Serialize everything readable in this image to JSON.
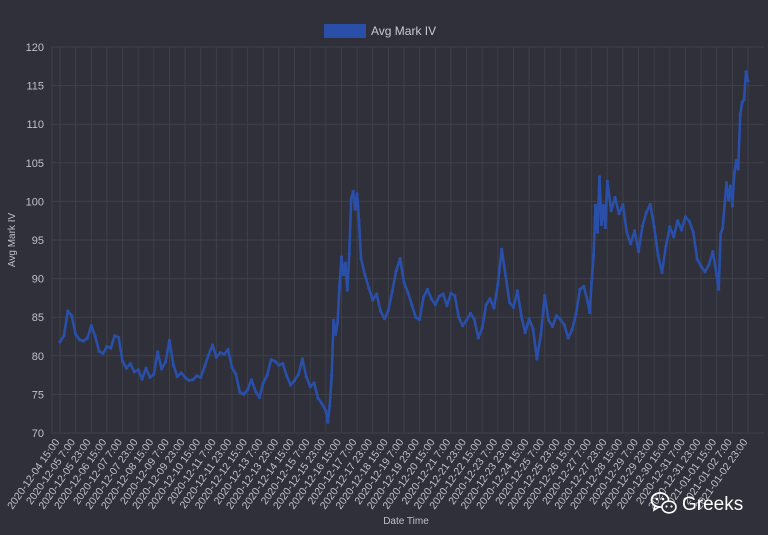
{
  "chart_data": {
    "type": "line",
    "title": "",
    "xlabel": "Date Time",
    "ylabel": "Avg Mark IV",
    "ylim": [
      70,
      120
    ],
    "yticks": [
      70,
      75,
      80,
      85,
      90,
      95,
      100,
      105,
      110,
      115,
      120
    ],
    "grid": true,
    "legend_position": "top-center",
    "x_tick_labels": [
      "2020-12-04 15:00",
      "2020-12-05 7:00",
      "2020-12-05 23:00",
      "2020-12-06 15:00",
      "2020-12-07 7:00",
      "2020-12-07 23:00",
      "2020-12-08 15:00",
      "2020-12-09 7:00",
      "2020-12-09 23:00",
      "2020-12-10 15:00",
      "2020-12-11 7:00",
      "2020-12-11 23:00",
      "2020-12-12 15:00",
      "2020-12-13 7:00",
      "2020-12-13 23:00",
      "2020-12-14 15:00",
      "2020-12-15 7:00",
      "2020-12-15 23:00",
      "2020-12-16 15:00",
      "2020-12-17 7:00",
      "2020-12-17 23:00",
      "2020-12-18 15:00",
      "2020-12-19 7:00",
      "2020-12-19 23:00",
      "2020-12-20 15:00",
      "2020-12-21 7:00",
      "2020-12-21 23:00",
      "2020-12-22 15:00",
      "2020-12-23 7:00",
      "2020-12-23 23:00",
      "2020-12-24 15:00",
      "2020-12-25 7:00",
      "2020-12-25 23:00",
      "2020-12-26 15:00",
      "2020-12-27 7:00",
      "2020-12-27 23:00",
      "2020-12-28 15:00",
      "2020-12-29 7:00",
      "2020-12-29 23:00",
      "2020-12-30 15:00",
      "2020-12-31 7:00",
      "2020-12-31 23:00",
      "2021-01-01 15:00",
      "2021-01-02 7:00",
      "2021-01-02 23:00"
    ],
    "series": [
      {
        "name": "Avg Mark IV",
        "color": "#2a4fa8",
        "points": [
          [
            "2020-12-04 15:00",
            81.8
          ],
          [
            "2020-12-04 19:00",
            82.6
          ],
          [
            "2020-12-04 23:00",
            85.8
          ],
          [
            "2020-12-05 3:00",
            85.2
          ],
          [
            "2020-12-05 7:00",
            82.8
          ],
          [
            "2020-12-05 11:00",
            82.1
          ],
          [
            "2020-12-05 15:00",
            81.9
          ],
          [
            "2020-12-05 19:00",
            82.3
          ],
          [
            "2020-12-05 23:00",
            83.9
          ],
          [
            "2020-12-06 3:00",
            82.5
          ],
          [
            "2020-12-06 7:00",
            80.6
          ],
          [
            "2020-12-06 11:00",
            80.3
          ],
          [
            "2020-12-06 15:00",
            81.2
          ],
          [
            "2020-12-06 19:00",
            81.0
          ],
          [
            "2020-12-06 23:00",
            82.6
          ],
          [
            "2020-12-07 3:00",
            82.4
          ],
          [
            "2020-12-07 7:00",
            79.3
          ],
          [
            "2020-12-07 11:00",
            78.4
          ],
          [
            "2020-12-07 15:00",
            79.0
          ],
          [
            "2020-12-07 19:00",
            77.9
          ],
          [
            "2020-12-07 23:00",
            78.2
          ],
          [
            "2020-12-08 3:00",
            77.0
          ],
          [
            "2020-12-08 7:00",
            78.4
          ],
          [
            "2020-12-08 11:00",
            77.2
          ],
          [
            "2020-12-08 15:00",
            77.6
          ],
          [
            "2020-12-08 19:00",
            80.5
          ],
          [
            "2020-12-08 23:00",
            78.3
          ],
          [
            "2020-12-09 3:00",
            79.2
          ],
          [
            "2020-12-09 7:00",
            82.0
          ],
          [
            "2020-12-09 11:00",
            78.8
          ],
          [
            "2020-12-09 15:00",
            77.3
          ],
          [
            "2020-12-09 19:00",
            77.8
          ],
          [
            "2020-12-09 23:00",
            77.2
          ],
          [
            "2020-12-10 3:00",
            76.8
          ],
          [
            "2020-12-10 7:00",
            76.9
          ],
          [
            "2020-12-10 11:00",
            77.4
          ],
          [
            "2020-12-10 15:00",
            77.2
          ],
          [
            "2020-12-10 19:00",
            78.6
          ],
          [
            "2020-12-10 23:00",
            80.1
          ],
          [
            "2020-12-11 3:00",
            81.4
          ],
          [
            "2020-12-11 7:00",
            79.8
          ],
          [
            "2020-12-11 11:00",
            80.4
          ],
          [
            "2020-12-11 15:00",
            80.2
          ],
          [
            "2020-12-11 19:00",
            80.8
          ],
          [
            "2020-12-11 23:00",
            78.5
          ],
          [
            "2020-12-12 3:00",
            77.6
          ],
          [
            "2020-12-12 7:00",
            75.3
          ],
          [
            "2020-12-12 11:00",
            75.0
          ],
          [
            "2020-12-12 15:00",
            75.6
          ],
          [
            "2020-12-12 19:00",
            76.9
          ],
          [
            "2020-12-12 23:00",
            75.4
          ],
          [
            "2020-12-13 3:00",
            74.6
          ],
          [
            "2020-12-13 7:00",
            76.5
          ],
          [
            "2020-12-13 11:00",
            77.5
          ],
          [
            "2020-12-13 15:00",
            79.5
          ],
          [
            "2020-12-13 19:00",
            79.3
          ],
          [
            "2020-12-13 23:00",
            78.8
          ],
          [
            "2020-12-14 3:00",
            79.0
          ],
          [
            "2020-12-14 7:00",
            77.4
          ],
          [
            "2020-12-14 11:00",
            76.2
          ],
          [
            "2020-12-14 15:00",
            76.8
          ],
          [
            "2020-12-14 19:00",
            77.6
          ],
          [
            "2020-12-14 23:00",
            79.6
          ],
          [
            "2020-12-15 3:00",
            77.3
          ],
          [
            "2020-12-15 7:00",
            76.0
          ],
          [
            "2020-12-15 11:00",
            76.5
          ],
          [
            "2020-12-15 15:00",
            74.5
          ],
          [
            "2020-12-15 19:00",
            73.8
          ],
          [
            "2020-12-15 23:00",
            72.9
          ],
          [
            "2020-12-16 1:00",
            71.4
          ],
          [
            "2020-12-16 3:00",
            73.5
          ],
          [
            "2020-12-16 5:00",
            77.5
          ],
          [
            "2020-12-16 7:00",
            84.6
          ],
          [
            "2020-12-16 9:00",
            82.8
          ],
          [
            "2020-12-16 11:00",
            84.2
          ],
          [
            "2020-12-16 13:00",
            89.0
          ],
          [
            "2020-12-16 15:00",
            92.8
          ],
          [
            "2020-12-16 17:00",
            90.5
          ],
          [
            "2020-12-16 19:00",
            92.0
          ],
          [
            "2020-12-16 21:00",
            88.5
          ],
          [
            "2020-12-16 23:00",
            93.2
          ],
          [
            "2020-12-17 1:00",
            100.4
          ],
          [
            "2020-12-17 3:00",
            101.3
          ],
          [
            "2020-12-17 5:00",
            99.0
          ],
          [
            "2020-12-17 7:00",
            101.0
          ],
          [
            "2020-12-17 9:00",
            97.5
          ],
          [
            "2020-12-17 11:00",
            92.6
          ],
          [
            "2020-12-17 15:00",
            90.5
          ],
          [
            "2020-12-17 19:00",
            88.8
          ],
          [
            "2020-12-17 23:00",
            87.2
          ],
          [
            "2020-12-18 3:00",
            88.0
          ],
          [
            "2020-12-18 7:00",
            85.8
          ],
          [
            "2020-12-18 11:00",
            84.8
          ],
          [
            "2020-12-18 15:00",
            85.9
          ],
          [
            "2020-12-18 19:00",
            88.4
          ],
          [
            "2020-12-18 23:00",
            91.0
          ],
          [
            "2020-12-19 3:00",
            92.6
          ],
          [
            "2020-12-19 7:00",
            89.5
          ],
          [
            "2020-12-19 11:00",
            88.2
          ],
          [
            "2020-12-19 15:00",
            86.6
          ],
          [
            "2020-12-19 19:00",
            85.0
          ],
          [
            "2020-12-19 23:00",
            84.7
          ],
          [
            "2020-12-20 3:00",
            87.6
          ],
          [
            "2020-12-20 7:00",
            88.6
          ],
          [
            "2020-12-20 11:00",
            87.4
          ],
          [
            "2020-12-20 15:00",
            86.6
          ],
          [
            "2020-12-20 19:00",
            87.7
          ],
          [
            "2020-12-20 23:00",
            88.0
          ],
          [
            "2020-12-21 3:00",
            86.5
          ],
          [
            "2020-12-21 7:00",
            88.1
          ],
          [
            "2020-12-21 11:00",
            87.8
          ],
          [
            "2020-12-21 15:00",
            85.0
          ],
          [
            "2020-12-21 19:00",
            83.9
          ],
          [
            "2020-12-21 23:00",
            84.6
          ],
          [
            "2020-12-22 3:00",
            85.5
          ],
          [
            "2020-12-22 7:00",
            84.7
          ],
          [
            "2020-12-22 11:00",
            82.3
          ],
          [
            "2020-12-22 15:00",
            83.6
          ],
          [
            "2020-12-22 19:00",
            86.6
          ],
          [
            "2020-12-22 23:00",
            87.4
          ],
          [
            "2020-12-23 3:00",
            86.2
          ],
          [
            "2020-12-23 7:00",
            89.2
          ],
          [
            "2020-12-23 11:00",
            93.8
          ],
          [
            "2020-12-23 15:00",
            90.4
          ],
          [
            "2020-12-23 19:00",
            86.9
          ],
          [
            "2020-12-23 23:00",
            86.3
          ],
          [
            "2020-12-24 3:00",
            88.4
          ],
          [
            "2020-12-24 7:00",
            85.2
          ],
          [
            "2020-12-24 11:00",
            83.0
          ],
          [
            "2020-12-24 15:00",
            84.8
          ],
          [
            "2020-12-24 19:00",
            83.5
          ],
          [
            "2020-12-24 23:00",
            79.6
          ],
          [
            "2020-12-25 3:00",
            82.7
          ],
          [
            "2020-12-25 7:00",
            87.8
          ],
          [
            "2020-12-25 11:00",
            84.6
          ],
          [
            "2020-12-25 15:00",
            83.8
          ],
          [
            "2020-12-25 19:00",
            85.2
          ],
          [
            "2020-12-25 23:00",
            84.7
          ],
          [
            "2020-12-26 3:00",
            84.0
          ],
          [
            "2020-12-26 7:00",
            82.3
          ],
          [
            "2020-12-26 11:00",
            83.4
          ],
          [
            "2020-12-26 15:00",
            85.4
          ],
          [
            "2020-12-26 19:00",
            88.6
          ],
          [
            "2020-12-26 23:00",
            89.0
          ],
          [
            "2020-12-27 3:00",
            87.0
          ],
          [
            "2020-12-27 5:00",
            85.6
          ],
          [
            "2020-12-27 7:00",
            89.5
          ],
          [
            "2020-12-27 9:00",
            93.0
          ],
          [
            "2020-12-27 11:00",
            99.5
          ],
          [
            "2020-12-27 13:00",
            96.0
          ],
          [
            "2020-12-27 15:00",
            103.2
          ],
          [
            "2020-12-27 17:00",
            97.0
          ],
          [
            "2020-12-27 19:00",
            99.5
          ],
          [
            "2020-12-27 21:00",
            96.6
          ],
          [
            "2020-12-27 23:00",
            102.6
          ],
          [
            "2020-12-28 3:00",
            98.8
          ],
          [
            "2020-12-28 7:00",
            100.5
          ],
          [
            "2020-12-28 11:00",
            98.4
          ],
          [
            "2020-12-28 15:00",
            99.6
          ],
          [
            "2020-12-28 19:00",
            96.0
          ],
          [
            "2020-12-28 23:00",
            94.5
          ],
          [
            "2020-12-29 3:00",
            96.2
          ],
          [
            "2020-12-29 7:00",
            93.5
          ],
          [
            "2020-12-29 11:00",
            96.8
          ],
          [
            "2020-12-29 15:00",
            98.6
          ],
          [
            "2020-12-29 19:00",
            99.6
          ],
          [
            "2020-12-29 23:00",
            96.7
          ],
          [
            "2020-12-30 3:00",
            93.0
          ],
          [
            "2020-12-30 7:00",
            90.8
          ],
          [
            "2020-12-30 11:00",
            94.2
          ],
          [
            "2020-12-30 15:00",
            96.7
          ],
          [
            "2020-12-30 19:00",
            95.4
          ],
          [
            "2020-12-30 23:00",
            97.5
          ],
          [
            "2020-12-31 3:00",
            96.3
          ],
          [
            "2020-12-31 7:00",
            98.0
          ],
          [
            "2020-12-31 11:00",
            97.4
          ],
          [
            "2020-12-31 15:00",
            96.0
          ],
          [
            "2020-12-31 19:00",
            92.5
          ],
          [
            "2020-12-31 23:00",
            91.6
          ],
          [
            "2021-01-01 3:00",
            90.9
          ],
          [
            "2021-01-01 7:00",
            91.8
          ],
          [
            "2021-01-01 11:00",
            93.5
          ],
          [
            "2021-01-01 15:00",
            90.4
          ],
          [
            "2021-01-01 17:00",
            88.6
          ],
          [
            "2021-01-01 19:00",
            95.8
          ],
          [
            "2021-01-01 21:00",
            96.5
          ],
          [
            "2021-01-01 23:00",
            99.4
          ],
          [
            "2021-01-02 1:00",
            102.4
          ],
          [
            "2021-01-02 3:00",
            100.2
          ],
          [
            "2021-01-02 5:00",
            102.0
          ],
          [
            "2021-01-02 7:00",
            99.4
          ],
          [
            "2021-01-02 9:00",
            103.6
          ],
          [
            "2021-01-02 11:00",
            105.3
          ],
          [
            "2021-01-02 13:00",
            104.2
          ],
          [
            "2021-01-02 15:00",
            111.2
          ],
          [
            "2021-01-02 17:00",
            112.8
          ],
          [
            "2021-01-02 19:00",
            113.2
          ],
          [
            "2021-01-02 21:00",
            116.8
          ],
          [
            "2021-01-02 23:00",
            115.6
          ]
        ]
      }
    ]
  },
  "watermark": {
    "text": "Greeks",
    "icon": "wechat-icon"
  }
}
